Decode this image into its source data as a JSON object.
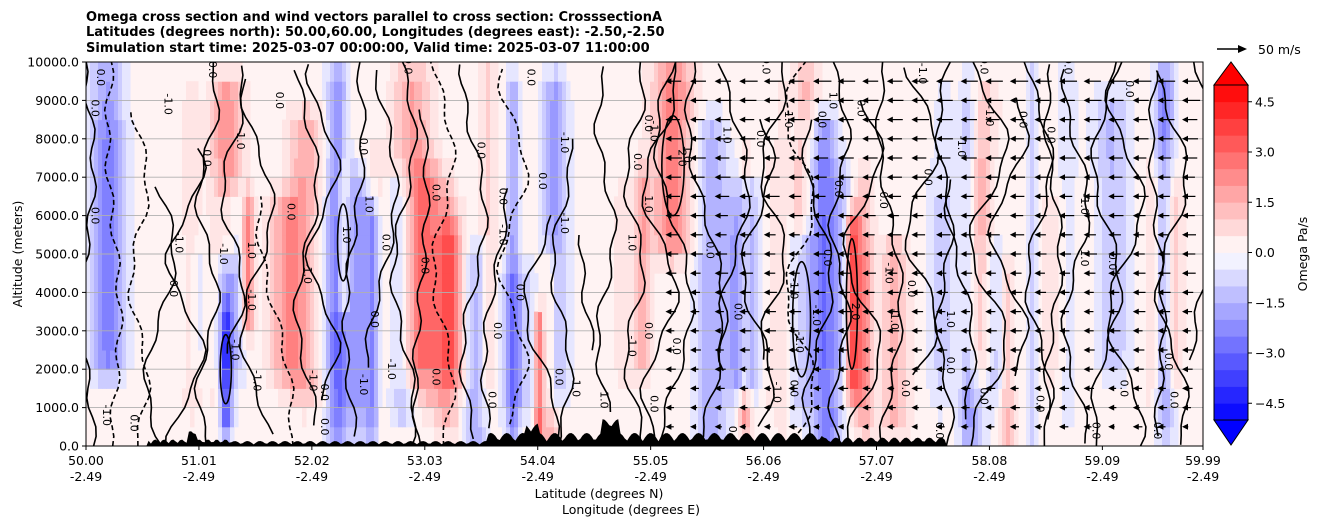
{
  "chart_data": {
    "type": "heatmap",
    "title_lines": [
      "Omega cross section and wind vectors parallel to cross section: CrosssectionA",
      "Latitudes (degrees north): 50.00,60.00, Longitudes (degrees east): -2.50,-2.50",
      "Simulation start time: 2025-03-07 00:00:00, Valid time: 2025-03-07 11:00:00"
    ],
    "x_ticks": [
      {
        "lat": "50.00",
        "lon": "-2.49"
      },
      {
        "lat": "51.01",
        "lon": "-2.49"
      },
      {
        "lat": "52.02",
        "lon": "-2.49"
      },
      {
        "lat": "53.03",
        "lon": "-2.49"
      },
      {
        "lat": "54.04",
        "lon": "-2.49"
      },
      {
        "lat": "55.05",
        "lon": "-2.49"
      },
      {
        "lat": "56.06",
        "lon": "-2.49"
      },
      {
        "lat": "57.07",
        "lon": "-2.49"
      },
      {
        "lat": "58.08",
        "lon": "-2.49"
      },
      {
        "lat": "59.09",
        "lon": "-2.49"
      },
      {
        "lat": "59.99",
        "lon": "-2.49"
      }
    ],
    "xlabel_lat": "Latitude (degrees N)",
    "xlabel_lon": "Longitude (degrees E)",
    "ylabel": "Altitude (meters)",
    "ylim": [
      0,
      10000
    ],
    "y_ticks": [
      "0.0",
      "1000.0",
      "2000.0",
      "3000.0",
      "4000.0",
      "5000.0",
      "6000.0",
      "7000.0",
      "8000.0",
      "9000.0",
      "10000.0"
    ],
    "grid": "horizontal",
    "colorbar": {
      "label": "Omega Pa/s",
      "min": -5.0,
      "max": 5.0,
      "step": 0.5,
      "extend": "both",
      "tick_values": [
        -4.5,
        -3.0,
        -1.5,
        0.0,
        1.5,
        3.0,
        4.5
      ],
      "tick_labels": [
        "−4.5",
        "−3.0",
        "−1.5",
        "0.0",
        "1.5",
        "3.0",
        "4.5"
      ]
    },
    "quiver_key": {
      "label": "50 m/s",
      "value": 50
    },
    "wind_region_start_lat": 55.2,
    "wind_direction": "southward",
    "contour_labels": [
      {
        "text": "0.0",
        "lat": 50.1,
        "alt": 9600
      },
      {
        "text": "0.0",
        "lat": 50.05,
        "alt": 8800
      },
      {
        "text": "0.0",
        "lat": 50.05,
        "alt": 6000
      },
      {
        "text": "-1.0",
        "lat": 50.15,
        "alt": 800
      },
      {
        "text": "-1.0",
        "lat": 50.7,
        "alt": 8900
      },
      {
        "text": "0.0",
        "lat": 51.1,
        "alt": 9800
      },
      {
        "text": "-1.0",
        "lat": 51.35,
        "alt": 8000
      },
      {
        "text": "0.0",
        "lat": 50.75,
        "alt": 4100
      },
      {
        "text": "-1.0",
        "lat": 50.8,
        "alt": 5300
      },
      {
        "text": "-1.0",
        "lat": 51.2,
        "alt": 5000
      },
      {
        "text": "1.0",
        "lat": 51.45,
        "alt": 5100
      },
      {
        "text": "-1.0",
        "lat": 51.45,
        "alt": 3800
      },
      {
        "text": "-1.0",
        "lat": 51.3,
        "alt": 2500
      },
      {
        "text": "-1.0",
        "lat": 51.5,
        "alt": 1700
      },
      {
        "text": "0.0",
        "lat": 50.4,
        "alt": 600
      },
      {
        "text": "0.0",
        "lat": 51.05,
        "alt": 7500
      },
      {
        "text": "0.0",
        "lat": 51.7,
        "alt": 9000
      },
      {
        "text": "-1.0",
        "lat": 51.95,
        "alt": 4500
      },
      {
        "text": "0.0",
        "lat": 51.8,
        "alt": 6100
      },
      {
        "text": "-1.0",
        "lat": 52.0,
        "alt": 1700
      },
      {
        "text": "0.0",
        "lat": 52.1,
        "alt": 1400
      },
      {
        "text": "0.0",
        "lat": 52.1,
        "alt": 500
      },
      {
        "text": "1.0",
        "lat": 52.3,
        "alt": 5500
      },
      {
        "text": "0.0",
        "lat": 52.45,
        "alt": 7800
      },
      {
        "text": "1.0",
        "lat": 52.5,
        "alt": 6300
      },
      {
        "text": "0.0",
        "lat": 52.65,
        "alt": 5300
      },
      {
        "text": "0.0",
        "lat": 52.55,
        "alt": 3300
      },
      {
        "text": "-1.0",
        "lat": 52.7,
        "alt": 2000
      },
      {
        "text": "-1.0",
        "lat": 52.45,
        "alt": 1600
      },
      {
        "text": "0.0",
        "lat": 53.0,
        "alt": 4700
      },
      {
        "text": "0.0",
        "lat": 53.1,
        "alt": 6600
      },
      {
        "text": "0.0",
        "lat": 53.1,
        "alt": 1800
      },
      {
        "text": "0.0",
        "lat": 52.85,
        "alt": 9900
      },
      {
        "text": "0.0",
        "lat": 53.5,
        "alt": 7700
      },
      {
        "text": "0.0",
        "lat": 53.7,
        "alt": 6500
      },
      {
        "text": "-1.0",
        "lat": 53.7,
        "alt": 5500
      },
      {
        "text": "0.0",
        "lat": 53.85,
        "alt": 4000
      },
      {
        "text": "0.0",
        "lat": 53.65,
        "alt": 3000
      },
      {
        "text": "0.0",
        "lat": 53.6,
        "alt": 1200
      },
      {
        "text": "0.0",
        "lat": 53.95,
        "alt": 9600
      },
      {
        "text": "-1.0",
        "lat": 54.25,
        "alt": 7900
      },
      {
        "text": "-1.0",
        "lat": 54.25,
        "alt": 5800
      },
      {
        "text": "0.0",
        "lat": 54.05,
        "alt": 6900
      },
      {
        "text": "0.0",
        "lat": 54.2,
        "alt": 1800
      },
      {
        "text": "1.0",
        "lat": 54.35,
        "alt": 1500
      },
      {
        "text": "1.0",
        "lat": 54.6,
        "alt": 1200
      },
      {
        "text": "0.0",
        "lat": 54.9,
        "alt": 7400
      },
      {
        "text": "1.0",
        "lat": 54.85,
        "alt": 5300
      },
      {
        "text": "0.0",
        "lat": 55.0,
        "alt": 8400
      },
      {
        "text": "-1.0",
        "lat": 55.05,
        "alt": 8200
      },
      {
        "text": "1.0",
        "lat": 55.35,
        "alt": 7600
      },
      {
        "text": "2.0",
        "lat": 55.3,
        "alt": 7500
      },
      {
        "text": "1.0",
        "lat": 55.0,
        "alt": 6300
      },
      {
        "text": "0.0",
        "lat": 55.0,
        "alt": 3000
      },
      {
        "text": "-1.0",
        "lat": 54.85,
        "alt": 2600
      },
      {
        "text": "0.0",
        "lat": 55.05,
        "alt": 1100
      },
      {
        "text": "0.0",
        "lat": 55.25,
        "alt": 2600
      },
      {
        "text": "0.0",
        "lat": 55.55,
        "alt": 5100
      },
      {
        "text": "1.0",
        "lat": 55.7,
        "alt": 8100
      },
      {
        "text": "0.0",
        "lat": 55.8,
        "alt": 3500
      },
      {
        "text": "0.0",
        "lat": 55.75,
        "alt": 300
      },
      {
        "text": "0.0",
        "lat": 56.05,
        "alt": 9900
      },
      {
        "text": "0.0",
        "lat": 56.0,
        "alt": 8000
      },
      {
        "text": "1.0",
        "lat": 56.25,
        "alt": 8500
      },
      {
        "text": "0.0",
        "lat": 56.55,
        "alt": 8500
      },
      {
        "text": "-1.0",
        "lat": 56.3,
        "alt": 4100
      },
      {
        "text": "-1.0",
        "lat": 56.35,
        "alt": 2700
      },
      {
        "text": "-1.0",
        "lat": 56.15,
        "alt": 1400
      },
      {
        "text": "0.0",
        "lat": 56.3,
        "alt": 1500
      },
      {
        "text": "-1.0",
        "lat": 56.5,
        "alt": 3400
      },
      {
        "text": "0.0",
        "lat": 56.6,
        "alt": 4900
      },
      {
        "text": "1.0",
        "lat": 56.65,
        "alt": 9000
      },
      {
        "text": "0.0",
        "lat": 56.9,
        "alt": 8800
      },
      {
        "text": "0.0",
        "lat": 56.7,
        "alt": 6700
      },
      {
        "text": "2.0",
        "lat": 56.85,
        "alt": 3500
      },
      {
        "text": "-1.0",
        "lat": 57.2,
        "alt": 3300
      },
      {
        "text": "-1.0",
        "lat": 57.15,
        "alt": 4500
      },
      {
        "text": "0.0",
        "lat": 57.1,
        "alt": 6400
      },
      {
        "text": "-1.0",
        "lat": 57.45,
        "alt": 9700
      },
      {
        "text": "0.0",
        "lat": 57.35,
        "alt": 4100
      },
      {
        "text": "0.0",
        "lat": 57.3,
        "alt": 1500
      },
      {
        "text": "1.0",
        "lat": 57.7,
        "alt": 3300
      },
      {
        "text": "0.0",
        "lat": 57.7,
        "alt": 2100
      },
      {
        "text": "0.0",
        "lat": 57.6,
        "alt": 400
      },
      {
        "text": "0.0",
        "lat": 58.0,
        "alt": 9900
      },
      {
        "text": "0.0",
        "lat": 57.5,
        "alt": 7000
      },
      {
        "text": "-1.0",
        "lat": 57.8,
        "alt": 7800
      },
      {
        "text": "-1.0",
        "lat": 58.05,
        "alt": 8600
      },
      {
        "text": "0.0",
        "lat": 58.0,
        "alt": 1300
      },
      {
        "text": "0.0",
        "lat": 58.35,
        "alt": 8500
      },
      {
        "text": "0.0",
        "lat": 58.6,
        "alt": 8100
      },
      {
        "text": "0.0",
        "lat": 58.5,
        "alt": 1100
      },
      {
        "text": "0.0",
        "lat": 58.75,
        "alt": 9900
      },
      {
        "text": "-1.0",
        "lat": 58.9,
        "alt": 6300
      },
      {
        "text": "0.0",
        "lat": 59.15,
        "alt": 4800
      },
      {
        "text": "0.0",
        "lat": 59.25,
        "alt": 1500
      },
      {
        "text": "0.0",
        "lat": 59.3,
        "alt": 9300
      },
      {
        "text": "1.0",
        "lat": 58.9,
        "alt": 4900
      },
      {
        "text": "0.0",
        "lat": 59.65,
        "alt": 2200
      },
      {
        "text": "0.0",
        "lat": 59.55,
        "alt": 400
      },
      {
        "text": "0.0",
        "lat": 59.0,
        "alt": 400
      },
      {
        "text": "0.0",
        "lat": 59.7,
        "alt": 1200
      }
    ]
  }
}
